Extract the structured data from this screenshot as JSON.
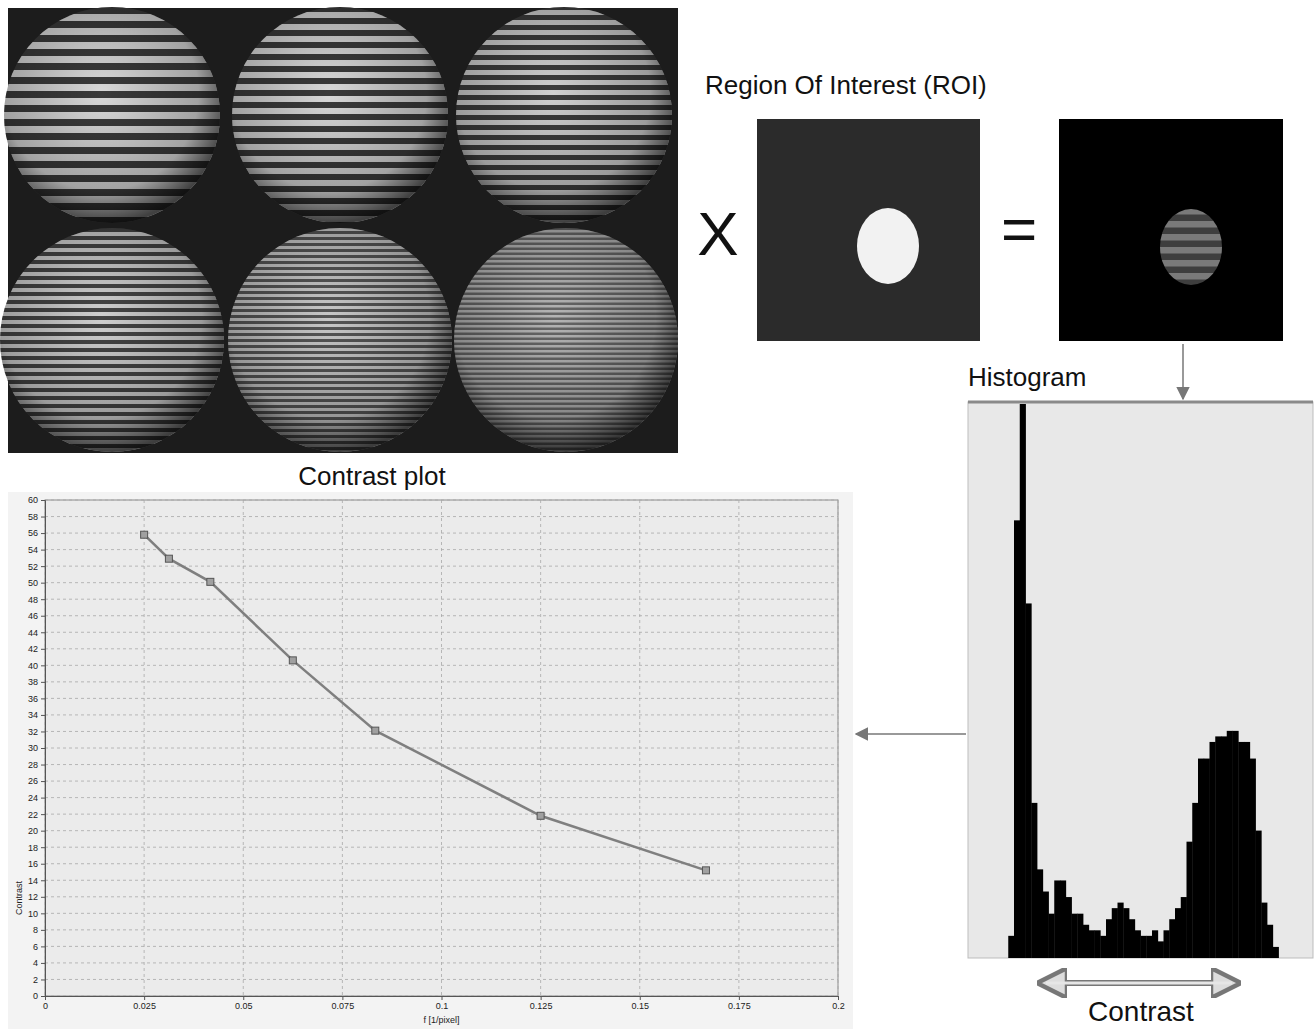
{
  "figure": {
    "roi_title": "Region Of Interest (ROI)",
    "operators": [
      "X",
      "="
    ]
  },
  "chart_data": [
    {
      "type": "line",
      "title": "Contrast plot",
      "x_label": "f [1/pixel]",
      "y_label": "Contrast",
      "x": [
        0.025,
        0.03125,
        0.0417,
        0.0625,
        0.0833,
        0.125,
        0.1667
      ],
      "values": [
        55.8,
        52.9,
        50.1,
        40.6,
        32.1,
        21.8,
        15.2
      ],
      "xlim": [
        0,
        0.2
      ],
      "xticks": [
        0,
        0.025,
        0.05,
        0.075,
        0.1,
        0.125,
        0.15,
        0.175,
        0.2
      ],
      "ylim": [
        0,
        60
      ],
      "yticks": [
        0,
        2,
        4,
        6,
        8,
        10,
        12,
        14,
        16,
        18,
        20,
        22,
        24,
        26,
        28,
        30,
        32,
        34,
        36,
        38,
        40,
        42,
        44,
        46,
        48,
        50,
        52,
        54,
        56,
        58,
        60
      ],
      "grid": true,
      "color": "#7f7f7f",
      "marker": "square",
      "line_style": "solid"
    },
    {
      "type": "histogram",
      "title": "Histogram",
      "x_label": "Contrast",
      "bins": [
        7,
        8,
        9,
        10,
        11,
        12,
        13,
        14,
        15,
        16,
        17,
        18,
        19,
        20,
        21,
        22,
        23,
        24,
        25,
        26,
        27,
        28,
        29,
        30,
        31,
        32,
        33,
        34,
        35,
        36,
        37,
        38,
        39,
        40,
        41,
        42,
        43,
        44,
        45,
        46,
        47,
        48,
        49,
        50,
        51,
        52,
        53,
        54
      ],
      "values": [
        4,
        79,
        100,
        64,
        28,
        16,
        12,
        8,
        14,
        14,
        11,
        8,
        8,
        6,
        5,
        5,
        4,
        7,
        9,
        10,
        9,
        7,
        5,
        4,
        4,
        5,
        3,
        5,
        7,
        9,
        11,
        21,
        28,
        36,
        36,
        39,
        40,
        40,
        41,
        41,
        39,
        39,
        36,
        23,
        10,
        6,
        2
      ],
      "xlim": [
        0,
        60
      ],
      "ylim": [
        0,
        100
      ],
      "tick_labels": false,
      "color": "#000000"
    }
  ]
}
